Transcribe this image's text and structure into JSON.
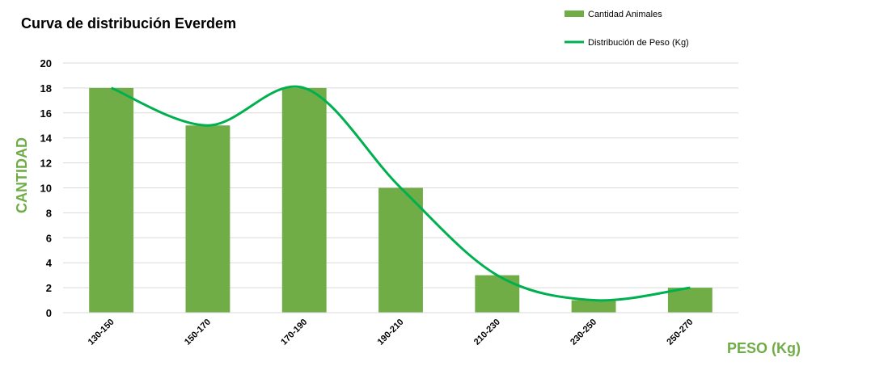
{
  "chart_data": {
    "type": "bar",
    "title": "Curva de distribución Everdem",
    "xlabel": "PESO (Kg)",
    "ylabel": "CANTIDAD",
    "categories": [
      "130-150",
      "150-170",
      "170-190",
      "190-210",
      "210-230",
      "230-250",
      "250-270"
    ],
    "series": [
      {
        "name": "Cantidad Animales",
        "type": "bar",
        "values": [
          18,
          15,
          18,
          10,
          3,
          1,
          2
        ],
        "color": "#70AD47"
      },
      {
        "name": "Distribución de Peso (Kg)",
        "type": "line",
        "smooth": true,
        "values": [
          18,
          15,
          18,
          10,
          3,
          1,
          2
        ],
        "color": "#00B050"
      }
    ],
    "ylim": [
      0,
      20
    ],
    "yticks": [
      0,
      2,
      4,
      6,
      8,
      10,
      12,
      14,
      16,
      18,
      20
    ],
    "grid": true,
    "legend_position": "top-right",
    "axis_label_color": "#70AD47"
  }
}
